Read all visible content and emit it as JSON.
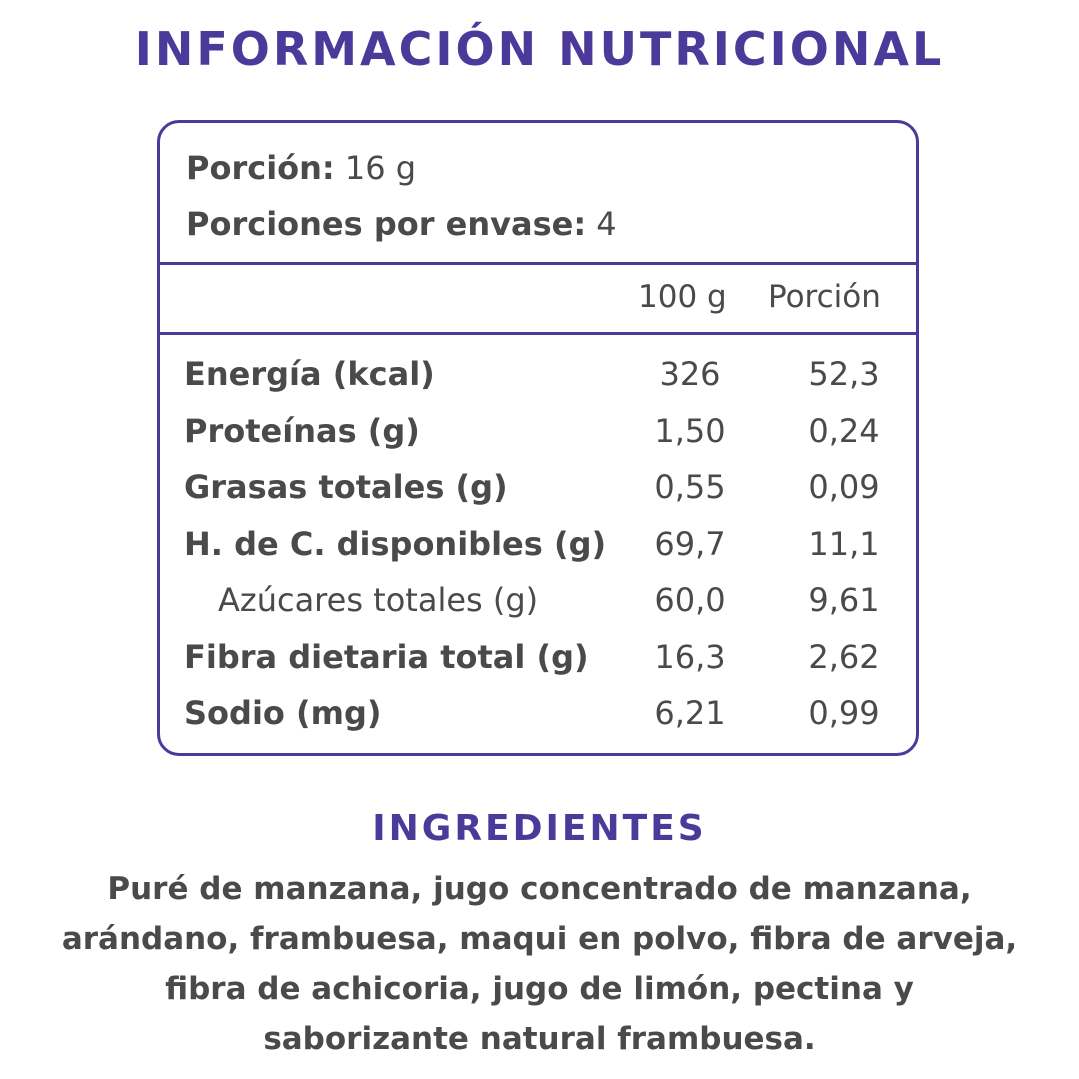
{
  "title": "INFORMACIÓN NUTRICIONAL",
  "serving": {
    "portion_label": "Porción:",
    "portion_value": "16 g",
    "per_pack_label": "Porciones por envase:",
    "per_pack_value": "4"
  },
  "columns": {
    "per100": "100 g",
    "per_portion": "Porción"
  },
  "rows": [
    {
      "name": "Energía (kcal)",
      "per100": "326",
      "per_portion": "52,3"
    },
    {
      "name": "Proteínas (g)",
      "per100": "1,50",
      "per_portion": "0,24"
    },
    {
      "name": "Grasas totales (g)",
      "per100": "0,55",
      "per_portion": "0,09"
    },
    {
      "name": "H. de C. disponibles (g)",
      "per100": "69,7",
      "per_portion": "11,1"
    },
    {
      "name": "Azúcares totales (g)",
      "per100": "60,0",
      "per_portion": "9,61"
    },
    {
      "name": "Fibra dietaria total (g)",
      "per100": "16,3",
      "per_portion": "2,62"
    },
    {
      "name": "Sodio (mg)",
      "per100": "6,21",
      "per_portion": "0,99"
    }
  ],
  "ingredients": {
    "title": "INGREDIENTES",
    "line1": "Puré de manzana, jugo concentrado de manzana,",
    "line2": "arándano, frambuesa, maqui en polvo, fibra de arveja,",
    "line3": "fibra de achicoria, jugo de limón, pectina y",
    "line4": "saborizante natural frambuesa."
  },
  "colors": {
    "accent": "#4b3a9a",
    "text": "#4a4a4a"
  }
}
